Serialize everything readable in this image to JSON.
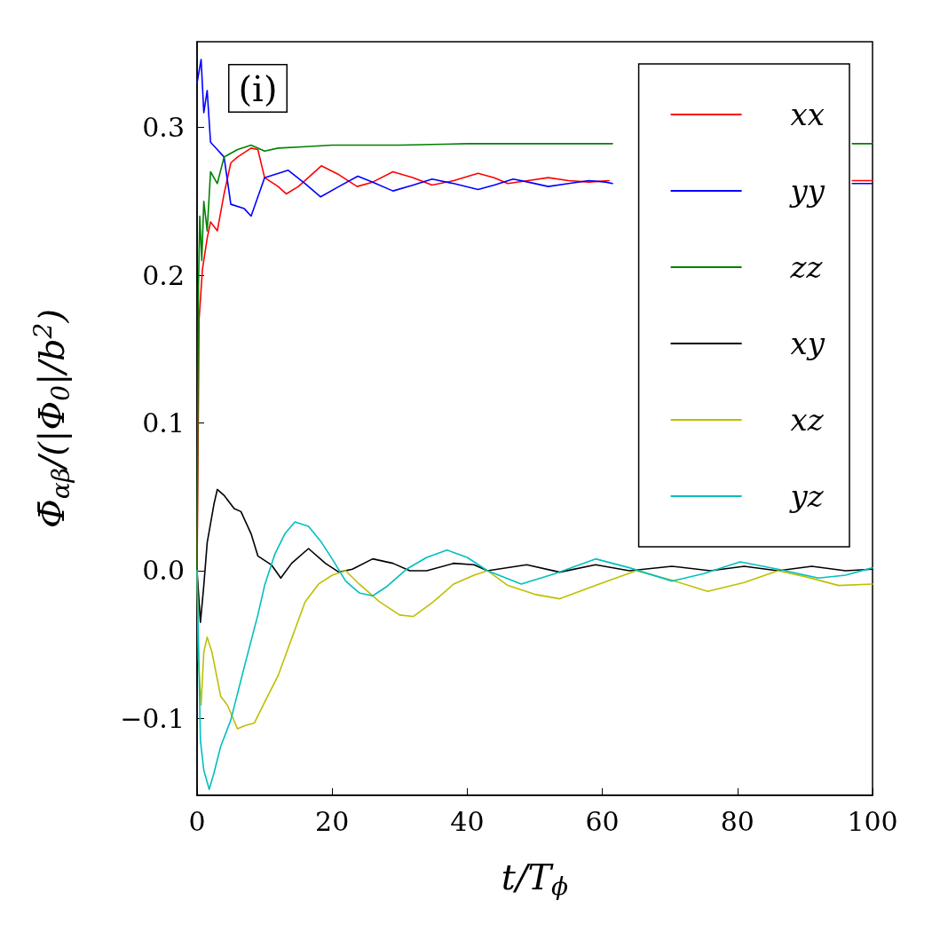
{
  "chart_data": {
    "type": "line",
    "xlabel": "t/T$_{ϕ}$",
    "ylabel": "Φ̄$_{αβ}$/(|Φ$_{0}$|/b$^{2}$)",
    "annotations": [
      "(i)"
    ],
    "xlim": [
      0,
      100
    ],
    "xticks": [
      0,
      20,
      40,
      60,
      80,
      100
    ],
    "ylim": [
      -0.152,
      0.358
    ],
    "yticks": [
      {
        "value": -0.1,
        "label": "−0.1"
      },
      {
        "value": 0,
        "label": "0.0"
      },
      0.1,
      0.2,
      0.3
    ],
    "grid": false,
    "legend": "top right",
    "marker": "none",
    "line_style": "solid",
    "series": [
      {
        "name": "xx",
        "color": "#ff0000",
        "x": [
          0,
          0.3,
          0.8,
          1.5,
          2,
          3,
          4,
          5,
          6,
          8,
          9,
          10,
          12,
          13.2,
          15,
          18.4,
          21,
          23.7,
          26,
          29,
          32,
          34.8,
          38,
          41.6,
          44,
          46,
          49,
          52,
          55,
          58,
          61,
          64,
          70,
          76,
          82,
          88,
          97,
          100
        ],
        "values": [
          0,
          0.17,
          0.204,
          0.225,
          0.236,
          0.23,
          0.255,
          0.276,
          0.28,
          0.286,
          0.285,
          0.266,
          0.26,
          0.255,
          0.26,
          0.274,
          0.268,
          0.26,
          0.263,
          0.27,
          0.266,
          0.261,
          0.264,
          0.269,
          0.266,
          0.262,
          0.264,
          0.266,
          0.264,
          0.263,
          0.264,
          null,
          null,
          null,
          null,
          null,
          0.264,
          0.264
        ]
      },
      {
        "name": "yy",
        "color": "#0000ff",
        "x": [
          0,
          0.6,
          1,
          1.5,
          2,
          3,
          4,
          5,
          7,
          8,
          10,
          13.5,
          16,
          18.3,
          21,
          23.8,
          26,
          29,
          32,
          34.8,
          38,
          41.6,
          44,
          46.8,
          49,
          52,
          55,
          58,
          60.5,
          61.5,
          70,
          76,
          82,
          88,
          97,
          100
        ],
        "values": [
          0.33,
          0.346,
          0.31,
          0.325,
          0.29,
          0.285,
          0.28,
          0.248,
          0.245,
          0.24,
          0.266,
          0.271,
          0.262,
          0.253,
          0.26,
          0.267,
          0.263,
          0.257,
          0.261,
          0.265,
          0.262,
          0.258,
          0.261,
          0.265,
          0.263,
          0.26,
          0.262,
          0.264,
          0.263,
          0.262,
          null,
          null,
          null,
          null,
          0.262,
          0.262
        ]
      },
      {
        "name": "zz",
        "color": "#008000",
        "x": [
          0,
          0.2,
          0.4,
          0.7,
          1,
          1.5,
          2,
          3,
          4,
          6,
          8,
          10,
          12,
          16,
          20,
          30,
          40,
          50,
          61.5,
          70,
          80,
          90,
          97,
          100
        ],
        "values": [
          0,
          0.19,
          0.24,
          0.21,
          0.25,
          0.23,
          0.27,
          0.262,
          0.28,
          0.285,
          0.288,
          0.284,
          0.286,
          0.287,
          0.288,
          0.288,
          0.289,
          0.289,
          0.289,
          null,
          null,
          null,
          0.289,
          0.289
        ]
      },
      {
        "name": "xy",
        "color": "#000000",
        "x": [
          0,
          0.5,
          1,
          1.5,
          2.5,
          3,
          4,
          5.5,
          6.5,
          8,
          9,
          11,
          12.4,
          14,
          16.5,
          19,
          21,
          23,
          26,
          29,
          31.5,
          34,
          38,
          41,
          43,
          48.8,
          53.7,
          59,
          64,
          70.3,
          76,
          81,
          86,
          91,
          96,
          100
        ],
        "values": [
          0,
          -0.035,
          -0.01,
          0.019,
          0.045,
          0.055,
          0.051,
          0.042,
          0.04,
          0.025,
          0.01,
          0.004,
          -0.005,
          0.005,
          0.015,
          0.005,
          -0.001,
          0.001,
          0.008,
          0.005,
          0,
          0,
          0.005,
          0.004,
          0,
          0.004,
          -0.001,
          0.004,
          0,
          0.003,
          0,
          0.003,
          0,
          0.003,
          0,
          0.001
        ]
      },
      {
        "name": "xz",
        "color": "#bfbf00",
        "x": [
          0,
          0.2,
          0.6,
          1,
          1.5,
          2.2,
          3.5,
          4.5,
          6,
          7,
          8.5,
          10,
          12,
          14,
          16,
          18,
          20,
          22,
          24,
          27,
          30,
          32,
          35,
          38,
          41,
          43,
          46,
          50,
          53.7,
          59,
          65,
          70,
          75.6,
          81,
          86,
          90,
          95,
          100
        ],
        "values": [
          0,
          -0.06,
          -0.091,
          -0.055,
          -0.045,
          -0.055,
          -0.085,
          -0.091,
          -0.107,
          -0.105,
          -0.103,
          -0.089,
          -0.071,
          -0.046,
          -0.021,
          -0.009,
          -0.003,
          0,
          -0.009,
          -0.021,
          -0.03,
          -0.031,
          -0.021,
          -0.009,
          -0.003,
          0,
          -0.01,
          -0.016,
          -0.019,
          -0.01,
          0,
          -0.006,
          -0.014,
          -0.008,
          0,
          -0.004,
          -0.01,
          -0.009
        ]
      },
      {
        "name": "yz",
        "color": "#00bfbf",
        "x": [
          0,
          0.5,
          1,
          1.8,
          2.5,
          3.5,
          5,
          7,
          9,
          10,
          11.5,
          13,
          14.5,
          16.5,
          18.3,
          20,
          22,
          24,
          26,
          28,
          31,
          34,
          37,
          40,
          43,
          48,
          53,
          59,
          64,
          70.3,
          75,
          80.4,
          86,
          92,
          96,
          100
        ],
        "values": [
          0,
          -0.115,
          -0.135,
          -0.148,
          -0.137,
          -0.119,
          -0.101,
          -0.065,
          -0.03,
          -0.01,
          0.011,
          0.025,
          0.033,
          0.03,
          0.02,
          0.008,
          -0.007,
          -0.015,
          -0.017,
          -0.011,
          0.001,
          0.009,
          0.014,
          0.009,
          0,
          -0.009,
          -0.002,
          0.008,
          0.002,
          -0.007,
          -0.002,
          0.006,
          0.001,
          -0.005,
          -0.003,
          0.002
        ]
      }
    ]
  }
}
